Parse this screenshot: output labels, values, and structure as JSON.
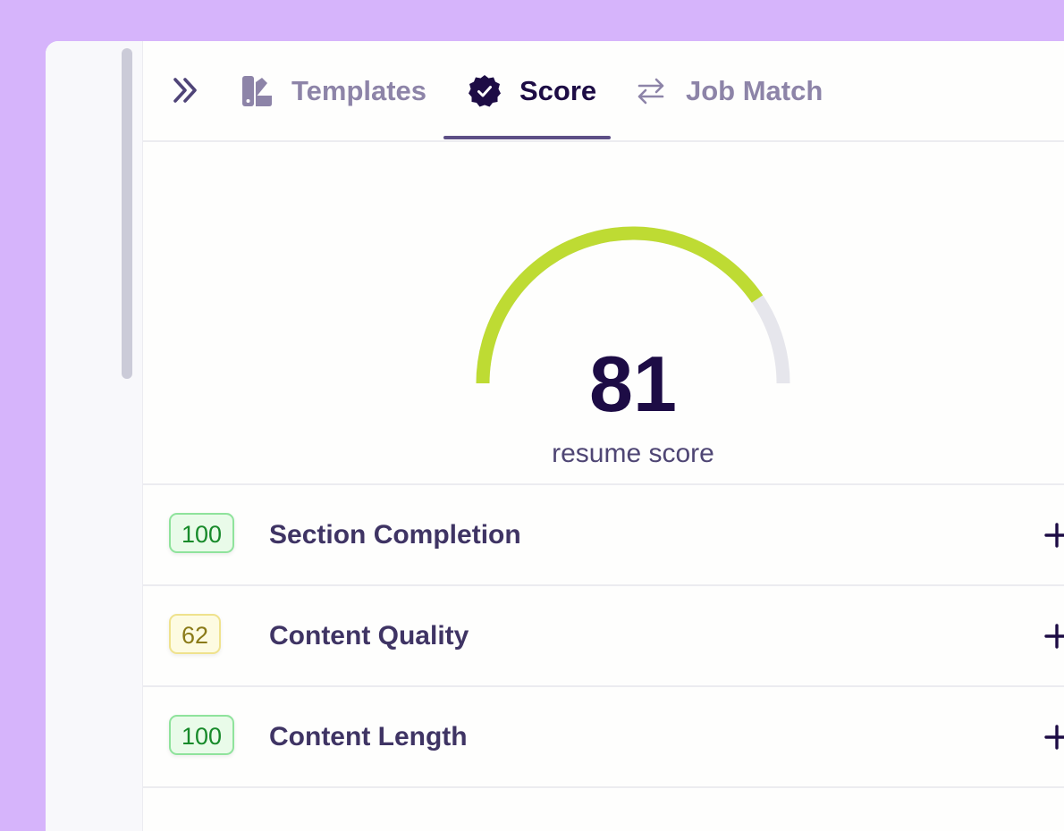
{
  "tabs": [
    {
      "label": "Templates",
      "icon": "swatch-book-icon",
      "active": false
    },
    {
      "label": "Score",
      "icon": "badge-check-icon",
      "active": true
    },
    {
      "label": "Job Match",
      "icon": "arrows-swap-icon",
      "active": false
    }
  ],
  "score": {
    "value": "81",
    "caption": "resume score",
    "fraction": 0.81,
    "colors": {
      "fill": "#bedb33",
      "track": "#e6e6ec"
    }
  },
  "categories": [
    {
      "score": "100",
      "label": "Section Completion",
      "status": "green"
    },
    {
      "score": "62",
      "label": "Content Quality",
      "status": "yellow"
    },
    {
      "score": "100",
      "label": "Content Length",
      "status": "green"
    }
  ],
  "colors": {
    "background": "#d6b4fb",
    "active_text": "#1d0c45",
    "inactive_text": "#8d84a8",
    "green": "#178a2a",
    "yellow": "#8a7a17"
  }
}
